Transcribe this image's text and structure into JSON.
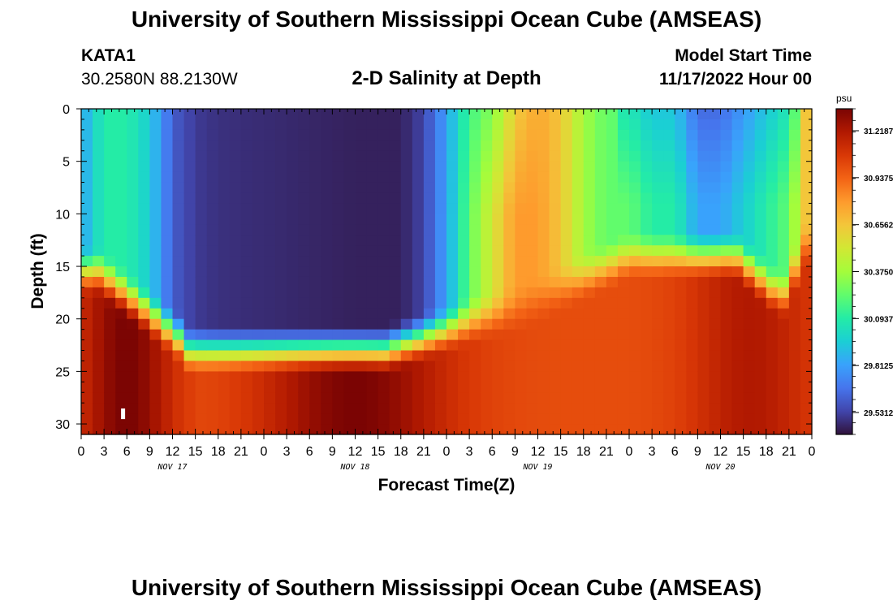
{
  "header": {
    "title": "University of Southern Mississippi Ocean Cube (AMSEAS)",
    "station": "KATA1",
    "coords": "30.2580N  88.2130W",
    "subtitle": "2-D Salinity at Depth",
    "start_label": "Model Start Time",
    "start_value": "11/17/2022 Hour 00"
  },
  "footer": {
    "title": "University of Southern Mississippi Ocean Cube (AMSEAS)"
  },
  "chart_data": {
    "type": "heatmap",
    "title": "2-D Salinity at Depth",
    "xlabel": "Forecast Time(Z)",
    "ylabel": "Depth (ft)",
    "x_range_hours": [
      0,
      96
    ],
    "y_range_ft": [
      0,
      31
    ],
    "x_tick_labels": [
      "0",
      "3",
      "6",
      "9",
      "12",
      "15",
      "18",
      "21",
      "0",
      "3",
      "6",
      "9",
      "12",
      "15",
      "18",
      "21",
      "0",
      "3",
      "6",
      "9",
      "12",
      "15",
      "18",
      "21",
      "0",
      "3",
      "6",
      "9",
      "12",
      "15",
      "18",
      "21",
      "0"
    ],
    "x_date_labels": [
      {
        "label": "NOV 17",
        "hour": 12
      },
      {
        "label": "NOV 18",
        "hour": 36
      },
      {
        "label": "NOV 19",
        "hour": 60
      },
      {
        "label": "NOV 20",
        "hour": 84
      }
    ],
    "y_ticks": [
      0,
      5,
      10,
      15,
      20,
      25,
      30
    ],
    "colorbar": {
      "unit": "psu",
      "range": [
        29.4,
        31.35
      ],
      "ticks": [
        "31.2187",
        "30.9375",
        "30.6562",
        "30.3750",
        "30.0937",
        "29.8125",
        "29.5312"
      ],
      "tick_values": [
        31.2187,
        30.9375,
        30.6562,
        30.375,
        30.0937,
        29.8125,
        29.5312
      ],
      "colormap": [
        "#30123b",
        "#4145ab",
        "#4675ed",
        "#39a2fc",
        "#1bcfd4",
        "#24eca6",
        "#61fc6c",
        "#a4fc3b",
        "#d1e834",
        "#f3c63a",
        "#fe9b2d",
        "#f36315",
        "#d93806",
        "#b11901",
        "#7a0403"
      ]
    },
    "marker": {
      "label": "",
      "hour": 5.5,
      "depth_ft": 29
    }
  }
}
